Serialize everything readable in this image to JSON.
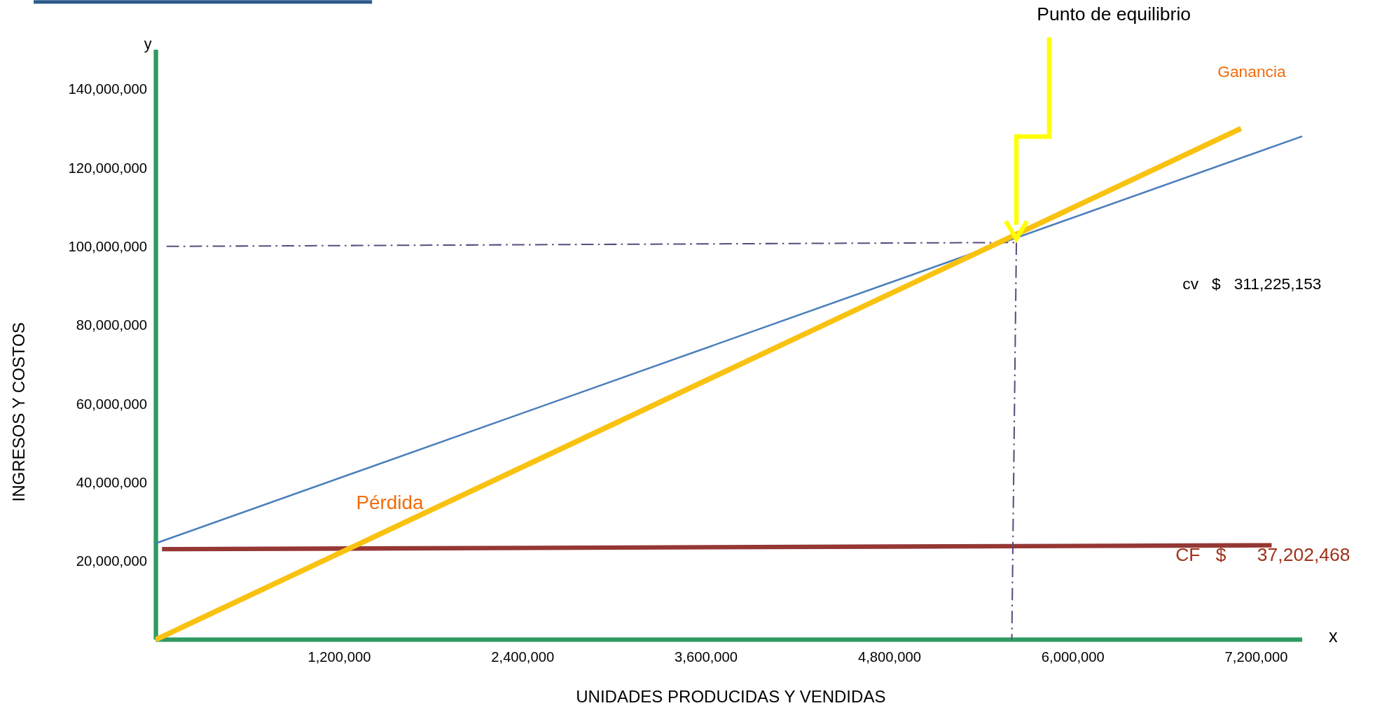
{
  "chart_data": {
    "type": "line",
    "xlabel": "UNIDADES PRODUCIDAS Y VENDIDAS",
    "ylabel": "INGRESOS Y COSTOS",
    "xlim": [
      0,
      7500000
    ],
    "ylim": [
      0,
      150000000
    ],
    "xticks": [
      {
        "value": 1200000,
        "label": "1,200,000"
      },
      {
        "value": 2400000,
        "label": "2,400,000"
      },
      {
        "value": 3600000,
        "label": "3,600,000"
      },
      {
        "value": 4800000,
        "label": "4,800,000"
      },
      {
        "value": 6000000,
        "label": "6,000,000"
      },
      {
        "value": 7200000,
        "label": "7,200,000"
      }
    ],
    "yticks": [
      {
        "value": 20000000,
        "label": "20,000,000"
      },
      {
        "value": 40000000,
        "label": "40,000,000"
      },
      {
        "value": 60000000,
        "label": "60,000,000"
      },
      {
        "value": 80000000,
        "label": "80,000,000"
      },
      {
        "value": 100000000,
        "label": "100,000,000"
      },
      {
        "value": 120000000,
        "label": "120,000,000"
      },
      {
        "value": 140000000,
        "label": "140,000,000"
      }
    ],
    "grid": false,
    "series": [
      {
        "color": "#953734",
        "x": [
          40000,
          7300000
        ],
        "values": [
          23000000,
          24000000
        ]
      },
      {
        "color": "#4a7ebb",
        "x": [
          0,
          7500000
        ],
        "values": [
          24500000,
          128000000
        ]
      },
      {
        "color": "#5b4a7d",
        "line_style": "dashed",
        "x": [
          70000,
          5630000
        ],
        "values": [
          100000000,
          101000000
        ]
      },
      {
        "color": "#5b4a7d",
        "line_style": "dashed",
        "x": [
          5630000,
          5600000
        ],
        "values": [
          101000000,
          0
        ]
      },
      {
        "color": "#f9c211",
        "x": [
          0,
          7100000
        ],
        "values": [
          0,
          130000000
        ]
      }
    ],
    "annotations": [
      "Punto de equilibrio",
      "Ganancia",
      "Pérdida",
      "cv   $   311,225,153",
      "CF   $      37,202,468",
      "y",
      "x"
    ]
  }
}
